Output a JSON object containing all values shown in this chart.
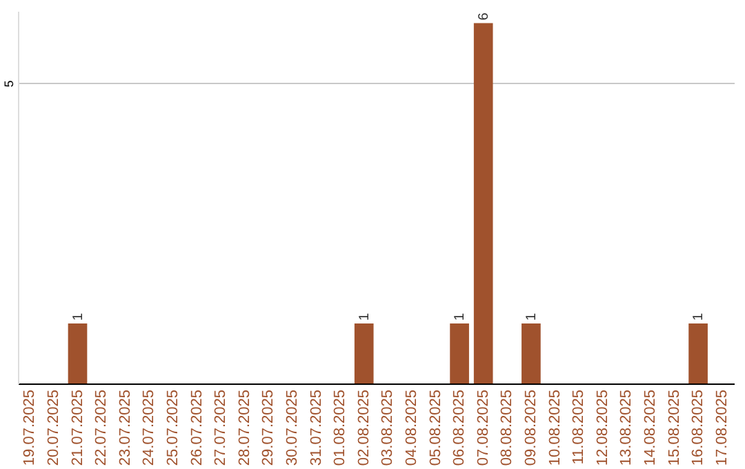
{
  "chart_data": {
    "type": "bar",
    "categories": [
      "19.07.2025",
      "20.07.2025",
      "21.07.2025",
      "22.07.2025",
      "23.07.2025",
      "24.07.2025",
      "25.07.2025",
      "26.07.2025",
      "27.07.2025",
      "28.07.2025",
      "29.07.2025",
      "30.07.2025",
      "31.07.2025",
      "01.08.2025",
      "02.08.2025",
      "03.08.2025",
      "04.08.2025",
      "05.08.2025",
      "06.08.2025",
      "07.08.2025",
      "08.08.2025",
      "09.08.2025",
      "10.08.2025",
      "11.08.2025",
      "12.08.2025",
      "13.08.2025",
      "14.08.2025",
      "15.08.2025",
      "16.08.2025",
      "17.08.2025"
    ],
    "values": [
      0,
      0,
      1,
      0,
      0,
      0,
      0,
      0,
      0,
      0,
      0,
      0,
      0,
      0,
      1,
      0,
      0,
      0,
      1,
      6,
      0,
      1,
      0,
      0,
      0,
      0,
      0,
      0,
      1,
      0
    ],
    "value_labels": [
      null,
      null,
      "1",
      null,
      null,
      null,
      null,
      null,
      null,
      null,
      null,
      null,
      null,
      null,
      "1",
      null,
      null,
      null,
      "1",
      "6",
      null,
      "1",
      null,
      null,
      null,
      null,
      null,
      null,
      "1",
      null
    ],
    "color": "#a0522d",
    "ylim": [
      0,
      6.2
    ],
    "yticks": [
      5
    ],
    "grid": "y"
  }
}
